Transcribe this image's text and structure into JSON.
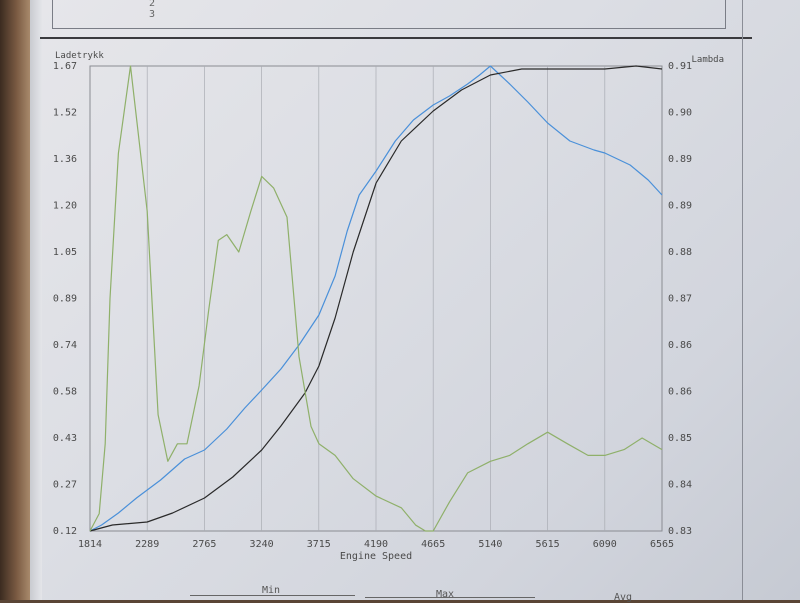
{
  "top_rows": [
    "2",
    "3"
  ],
  "chart_data": {
    "type": "line",
    "xlabel": "Engine Speed",
    "ylabel_left": "Ladetrykk",
    "ylabel_right": "Lambda",
    "x_ticks": [
      "1814",
      "2289",
      "2765",
      "3240",
      "3715",
      "4190",
      "4665",
      "5140",
      "5615",
      "6090",
      "6565"
    ],
    "left_ticks": [
      "1.67",
      "1.52",
      "1.36",
      "1.20",
      "1.05",
      "0.89",
      "0.74",
      "0.58",
      "0.43",
      "0.27",
      "0.12"
    ],
    "right_ticks": [
      "0.91",
      "0.90",
      "0.89",
      "0.89",
      "0.88",
      "0.87",
      "0.86",
      "0.86",
      "0.85",
      "0.84",
      "0.83"
    ],
    "xlim": [
      1814,
      6565
    ],
    "ylim_left": [
      0.12,
      1.67
    ],
    "ylim_right": [
      0.83,
      0.91
    ],
    "grid": true,
    "series": [
      {
        "color": "#4a90d9",
        "axis": "left",
        "x": [
          1814,
          1910,
          2050,
          2200,
          2400,
          2600,
          2765,
          2950,
          3100,
          3240,
          3400,
          3550,
          3715,
          3850,
          3950,
          4050,
          4190,
          4350,
          4500,
          4665,
          4800,
          4950,
          5050,
          5140,
          5300,
          5450,
          5615,
          5800,
          6000,
          6090,
          6300,
          6450,
          6565
        ],
        "y": [
          0.12,
          0.14,
          0.18,
          0.23,
          0.29,
          0.36,
          0.39,
          0.46,
          0.53,
          0.59,
          0.66,
          0.74,
          0.84,
          0.97,
          1.12,
          1.24,
          1.32,
          1.42,
          1.49,
          1.54,
          1.57,
          1.61,
          1.64,
          1.67,
          1.61,
          1.55,
          1.48,
          1.42,
          1.39,
          1.38,
          1.34,
          1.29,
          1.24
        ]
      },
      {
        "color": "#2a2a2a",
        "axis": "left",
        "x": [
          1814,
          2000,
          2289,
          2500,
          2765,
          3000,
          3240,
          3400,
          3600,
          3715,
          3850,
          4000,
          4190,
          4400,
          4665,
          4900,
          5140,
          5400,
          5615,
          5900,
          6090,
          6350,
          6565
        ],
        "y": [
          0.12,
          0.14,
          0.15,
          0.18,
          0.23,
          0.3,
          0.39,
          0.47,
          0.58,
          0.67,
          0.83,
          1.05,
          1.28,
          1.42,
          1.52,
          1.59,
          1.64,
          1.66,
          1.66,
          1.66,
          1.66,
          1.67,
          1.66
        ]
      },
      {
        "color": "#8fb06a",
        "axis": "right",
        "x": [
          1814,
          1890,
          1940,
          1980,
          2050,
          2150,
          2289,
          2380,
          2460,
          2540,
          2620,
          2720,
          2800,
          2880,
          2950,
          3050,
          3150,
          3240,
          3340,
          3450,
          3550,
          3650,
          3715,
          3850,
          4000,
          4190,
          4400,
          4520,
          4600,
          4665,
          4800,
          4950,
          5140,
          5300,
          5450,
          5615,
          5780,
          5950,
          6090,
          6250,
          6400,
          6565
        ],
        "y": [
          0.83,
          0.833,
          0.845,
          0.87,
          0.895,
          0.91,
          0.885,
          0.85,
          0.842,
          0.845,
          0.845,
          0.855,
          0.868,
          0.88,
          0.881,
          0.878,
          0.885,
          0.891,
          0.889,
          0.884,
          0.86,
          0.848,
          0.845,
          0.843,
          0.839,
          0.836,
          0.834,
          0.831,
          0.83,
          0.83,
          0.835,
          0.84,
          0.842,
          0.843,
          0.845,
          0.847,
          0.845,
          0.843,
          0.843,
          0.844,
          0.846,
          0.844
        ]
      }
    ]
  },
  "bottom_table": {
    "headers": [
      "Min",
      "Max",
      "Avg"
    ]
  }
}
